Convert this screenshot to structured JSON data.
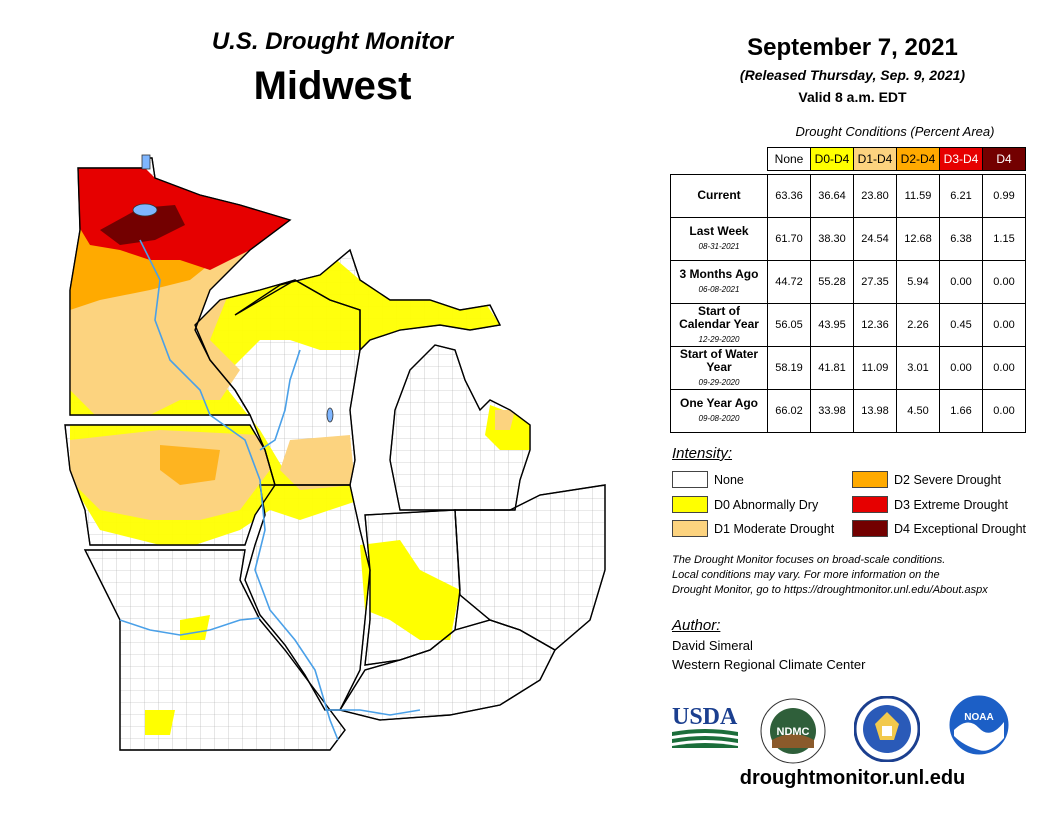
{
  "header": {
    "title_top": "U.S. Drought Monitor",
    "title_region": "Midwest",
    "date": "September 7, 2021",
    "released": "(Released Thursday, Sep. 9, 2021)",
    "valid": "Valid 8 a.m. EDT"
  },
  "table": {
    "caption": "Drought Conditions (Percent Area)",
    "columns": [
      {
        "label": "None",
        "color": "#ffffff",
        "text_color": "#000000"
      },
      {
        "label": "D0-D4",
        "color": "#ffff00",
        "text_color": "#000000"
      },
      {
        "label": "D1-D4",
        "color": "#fcd37f",
        "text_color": "#000000"
      },
      {
        "label": "D2-D4",
        "color": "#ffaa00",
        "text_color": "#000000"
      },
      {
        "label": "D3-D4",
        "color": "#e60000",
        "text_color": "#ffffff"
      },
      {
        "label": "D4",
        "color": "#730000",
        "text_color": "#ffffff"
      }
    ],
    "rows": [
      {
        "label": "Current",
        "sub": "",
        "values": [
          "63.36",
          "36.64",
          "23.80",
          "11.59",
          "6.21",
          "0.99"
        ]
      },
      {
        "label": "Last Week",
        "sub": "08-31-2021",
        "values": [
          "61.70",
          "38.30",
          "24.54",
          "12.68",
          "6.38",
          "1.15"
        ]
      },
      {
        "label": "3 Months Ago",
        "sub": "06-08-2021",
        "values": [
          "44.72",
          "55.28",
          "27.35",
          "5.94",
          "0.00",
          "0.00"
        ]
      },
      {
        "label": "Start of Calendar Year",
        "sub": "12-29-2020",
        "values": [
          "56.05",
          "43.95",
          "12.36",
          "2.26",
          "0.45",
          "0.00"
        ]
      },
      {
        "label": "Start of Water Year",
        "sub": "09-29-2020",
        "values": [
          "58.19",
          "41.81",
          "11.09",
          "3.01",
          "0.00",
          "0.00"
        ]
      },
      {
        "label": "One Year Ago",
        "sub": "09-08-2020",
        "values": [
          "66.02",
          "33.98",
          "13.98",
          "4.50",
          "1.66",
          "0.00"
        ]
      }
    ]
  },
  "legend": {
    "title": "Intensity:",
    "items": [
      {
        "label": "None",
        "color": "#ffffff"
      },
      {
        "label": "D0 Abnormally Dry",
        "color": "#ffff00"
      },
      {
        "label": "D1 Moderate Drought",
        "color": "#fcd37f"
      },
      {
        "label": "D2 Severe Drought",
        "color": "#ffaa00"
      },
      {
        "label": "D3 Extreme Drought",
        "color": "#e60000"
      },
      {
        "label": "D4 Exceptional Drought",
        "color": "#730000"
      }
    ]
  },
  "note": {
    "line1": "The Drought Monitor focuses on broad-scale conditions.",
    "line2": "Local conditions may vary. For more information on the",
    "line3": "Drought Monitor, go to https://droughtmonitor.unl.edu/About.aspx"
  },
  "author": {
    "title": "Author:",
    "name": "David Simeral",
    "org": "Western Regional Climate Center"
  },
  "logos": {
    "usda": "USDA",
    "ndmc": "NDMC",
    "noaa": "NOAA"
  },
  "footer": {
    "url": "droughtmonitor.unl.edu"
  },
  "map": {
    "water_color": "#7fb6ff",
    "river_color": "#4aa0e8"
  }
}
